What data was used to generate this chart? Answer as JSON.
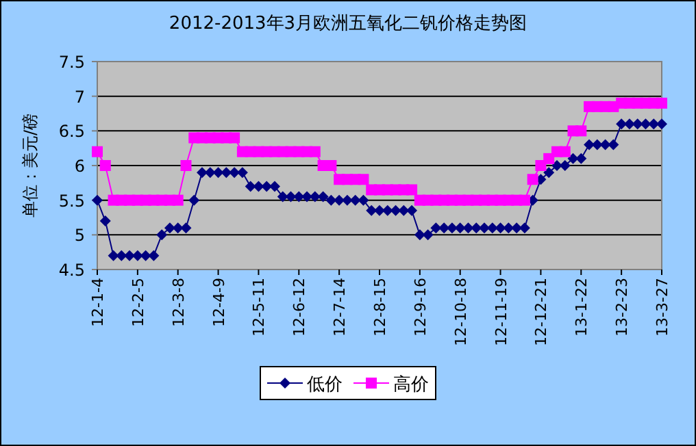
{
  "chart_data": {
    "type": "line",
    "title": "2012-2013年3月欧洲五氧化二钒价格走势图",
    "ylabel": "单位：美元/磅",
    "categories": [
      "12-1-4",
      null,
      null,
      null,
      null,
      "12-2-5",
      null,
      null,
      null,
      null,
      "12-3-8",
      null,
      null,
      null,
      null,
      "12-4-9",
      null,
      null,
      null,
      null,
      "12-5-11",
      null,
      null,
      null,
      null,
      "12-6-12",
      null,
      null,
      null,
      null,
      "12-7-14",
      null,
      null,
      null,
      null,
      "12-8-15",
      null,
      null,
      null,
      null,
      "12-9-16",
      null,
      null,
      null,
      null,
      "12-10-18",
      null,
      null,
      null,
      null,
      "12-11-19",
      null,
      null,
      null,
      null,
      "12-12-21",
      null,
      null,
      null,
      null,
      "13-1-22",
      null,
      null,
      null,
      null,
      "13-2-23",
      null,
      null,
      null,
      null,
      "13-3-27"
    ],
    "series": [
      {
        "name": "低价",
        "color": "#000080",
        "marker": "diamond",
        "values": [
          5.5,
          5.2,
          4.7,
          4.7,
          4.7,
          4.7,
          4.7,
          4.7,
          5.0,
          5.1,
          5.1,
          5.1,
          5.5,
          5.9,
          5.9,
          5.9,
          5.9,
          5.9,
          5.9,
          5.7,
          5.7,
          5.7,
          5.7,
          5.55,
          5.55,
          5.55,
          5.55,
          5.55,
          5.55,
          5.5,
          5.5,
          5.5,
          5.5,
          5.5,
          5.35,
          5.35,
          5.35,
          5.35,
          5.35,
          5.35,
          5.0,
          5.0,
          5.1,
          5.1,
          5.1,
          5.1,
          5.1,
          5.1,
          5.1,
          5.1,
          5.1,
          5.1,
          5.1,
          5.1,
          5.5,
          5.8,
          5.9,
          6.0,
          6.0,
          6.1,
          6.1,
          6.3,
          6.3,
          6.3,
          6.3,
          6.6,
          6.6,
          6.6,
          6.6,
          6.6,
          6.6
        ]
      },
      {
        "name": "高价",
        "color": "#ff00ff",
        "marker": "square",
        "values": [
          6.2,
          6.0,
          5.5,
          5.5,
          5.5,
          5.5,
          5.5,
          5.5,
          5.5,
          5.5,
          5.5,
          6.0,
          6.4,
          6.4,
          6.4,
          6.4,
          6.4,
          6.4,
          6.2,
          6.2,
          6.2,
          6.2,
          6.2,
          6.2,
          6.2,
          6.2,
          6.2,
          6.2,
          6.0,
          6.0,
          5.8,
          5.8,
          5.8,
          5.8,
          5.65,
          5.65,
          5.65,
          5.65,
          5.65,
          5.65,
          5.5,
          5.5,
          5.5,
          5.5,
          5.5,
          5.5,
          5.5,
          5.5,
          5.5,
          5.5,
          5.5,
          5.5,
          5.5,
          5.5,
          5.8,
          6.0,
          6.1,
          6.2,
          6.2,
          6.5,
          6.5,
          6.85,
          6.85,
          6.85,
          6.85,
          6.9,
          6.9,
          6.9,
          6.9,
          6.9,
          6.9
        ]
      }
    ],
    "ylim": [
      4.5,
      7.5
    ],
    "yticks": [
      4.5,
      5,
      5.5,
      6,
      6.5,
      7,
      7.5
    ],
    "grid": "y",
    "legend": "bottom"
  }
}
